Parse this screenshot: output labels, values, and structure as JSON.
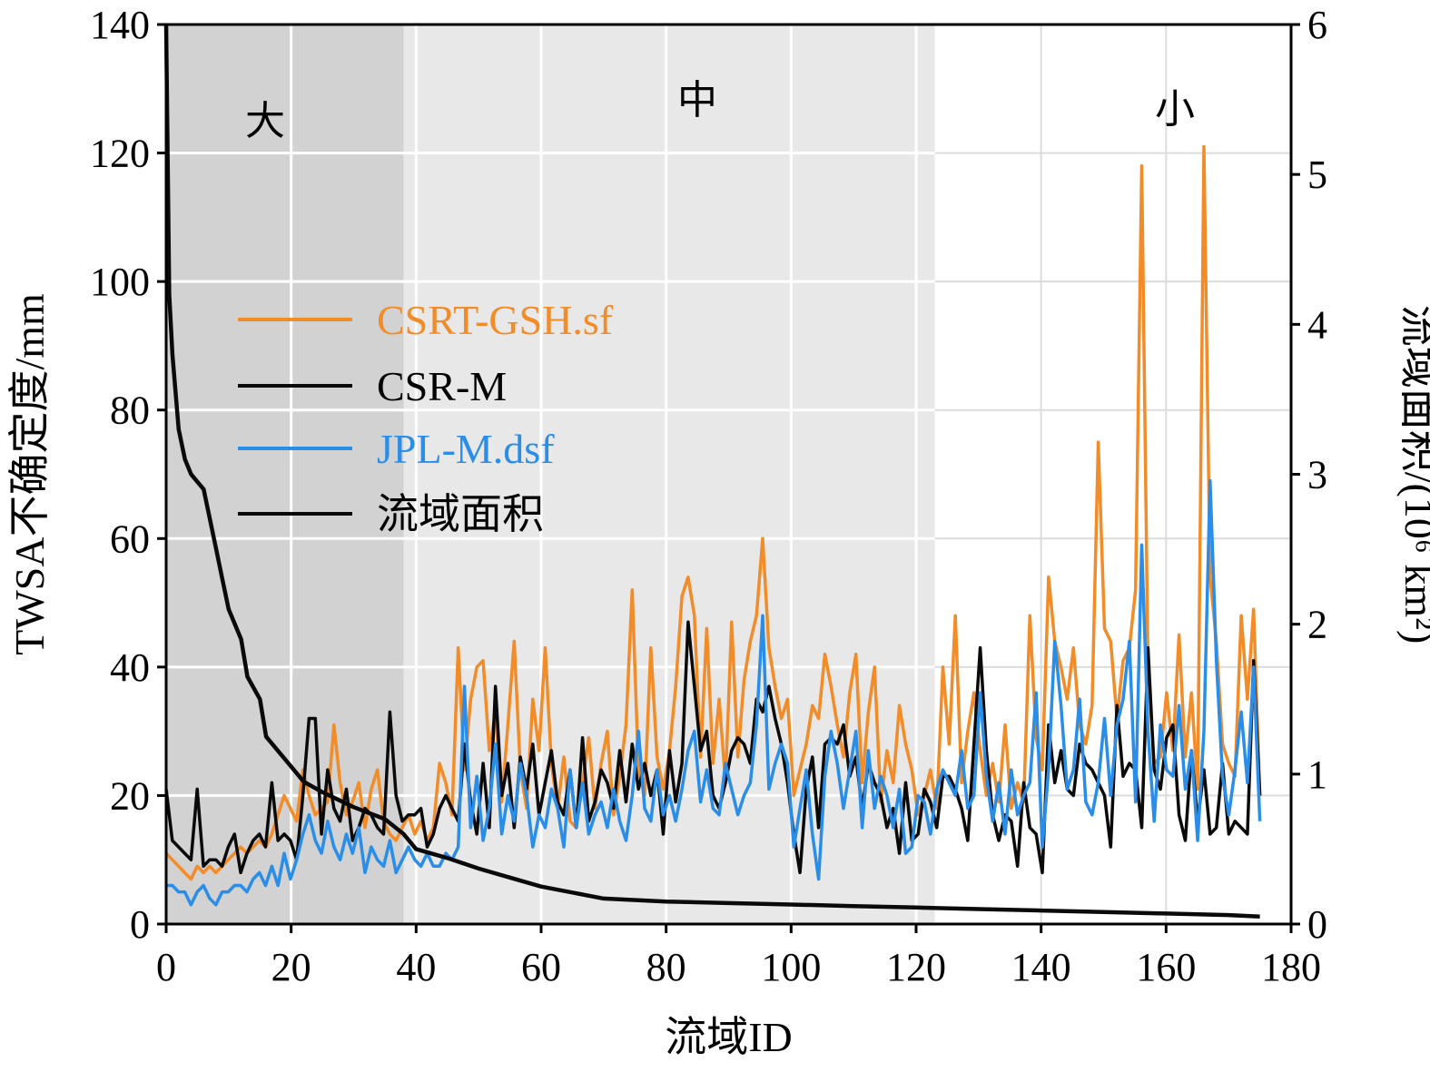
{
  "chart_data": {
    "type": "line",
    "xlabel": "流域ID",
    "ylabel": "TWSA不确定度/mm",
    "y2label": "流域面积/(10⁶ km²)",
    "xlim": [
      0,
      180
    ],
    "ylim": [
      0,
      140
    ],
    "y2lim": [
      0,
      6
    ],
    "x_ticks": [
      0,
      20,
      40,
      60,
      80,
      100,
      120,
      140,
      160,
      180
    ],
    "y_ticks": [
      0,
      20,
      40,
      60,
      80,
      100,
      120,
      140
    ],
    "y2_ticks": [
      0,
      1,
      2,
      3,
      4,
      5,
      6
    ],
    "grid": true,
    "legend_position": "upper-left",
    "regions": [
      {
        "label": "大",
        "x_start": 0,
        "x_end": 38,
        "color": "#d2d2d2"
      },
      {
        "label": "中",
        "x_start": 38,
        "x_end": 123,
        "color": "#e8e8e8"
      },
      {
        "label": "小",
        "x_start": 123,
        "x_end": 180,
        "color": "#ffffff"
      }
    ],
    "series": [
      {
        "name": "CSRT-GSH.sf",
        "color": "#f28c28",
        "axis": "left",
        "x_start": 0,
        "values": [
          11,
          10,
          9,
          8,
          7,
          9,
          8,
          9,
          8,
          9,
          10,
          11,
          12,
          11,
          12,
          13,
          12,
          14,
          17,
          20,
          18,
          16,
          24,
          20,
          17,
          18,
          19,
          31,
          22,
          17,
          19,
          22,
          15,
          21,
          24,
          16,
          14,
          13,
          15,
          17,
          14,
          16,
          13,
          15,
          25,
          22,
          17,
          43,
          24,
          35,
          40,
          41,
          27,
          33,
          19,
          31,
          44,
          24,
          18,
          35,
          27,
          43,
          25,
          18,
          26,
          16,
          15,
          22,
          29,
          18,
          25,
          30,
          17,
          23,
          31,
          52,
          24,
          20,
          43,
          26,
          21,
          27,
          37,
          51,
          54,
          48,
          26,
          46,
          25,
          35,
          22,
          47,
          26,
          38,
          44,
          48,
          60,
          43,
          37,
          32,
          35,
          20,
          24,
          28,
          34,
          32,
          42,
          37,
          31,
          26,
          36,
          42,
          22,
          33,
          40,
          19,
          27,
          22,
          34,
          28,
          24,
          17,
          20,
          24,
          18,
          40,
          28,
          48,
          22,
          30,
          36,
          27,
          20,
          25,
          19,
          31,
          18,
          22,
          19,
          48,
          29,
          24,
          54,
          44,
          40,
          35,
          43,
          31,
          28,
          34,
          75,
          46,
          44,
          32,
          41,
          43,
          52,
          118,
          40,
          25,
          26,
          36,
          27,
          45,
          26,
          36,
          21,
          121,
          54,
          44,
          28,
          25,
          23,
          48,
          35,
          49,
          20
        ],
        "x_end": 175
      },
      {
        "name": "CSR-M",
        "color": "#0a0a0a",
        "axis": "left",
        "x_start": 0,
        "values": [
          21,
          13,
          12,
          11,
          10,
          21,
          9,
          10,
          10,
          9,
          12,
          14,
          8,
          11,
          13,
          14,
          12,
          22,
          13,
          14,
          13,
          10,
          20,
          32,
          32,
          14,
          24,
          18,
          16,
          21,
          13,
          15,
          18,
          17,
          15,
          14,
          33,
          20,
          16,
          17,
          17,
          18,
          12,
          14,
          18,
          20,
          18,
          16,
          28,
          19,
          14,
          25,
          15,
          37,
          20,
          25,
          15,
          26,
          21,
          28,
          17,
          22,
          27,
          19,
          17,
          24,
          15,
          29,
          16,
          19,
          24,
          22,
          18,
          27,
          19,
          28,
          21,
          25,
          20,
          24,
          14,
          27,
          19,
          25,
          47,
          37,
          27,
          30,
          20,
          18,
          22,
          27,
          29,
          28,
          25,
          35,
          33,
          37,
          32,
          28,
          22,
          14,
          8,
          21,
          26,
          15,
          28,
          29,
          28,
          31,
          23,
          26,
          18,
          25,
          22,
          20,
          15,
          18,
          11,
          22,
          13,
          14,
          21,
          19,
          15,
          23,
          23,
          21,
          18,
          13,
          28,
          43,
          27,
          17,
          13,
          17,
          16,
          9,
          22,
          15,
          14,
          8,
          31,
          22,
          27,
          21,
          20,
          28,
          25,
          24,
          22,
          20,
          12,
          34,
          23,
          25,
          24,
          15,
          43,
          24,
          21,
          29,
          31,
          17,
          13,
          27,
          16,
          24,
          14,
          15,
          25,
          14,
          16,
          15,
          14,
          41,
          20
        ],
        "x_end": 175
      },
      {
        "name": "JPL-M.dsf",
        "color": "#2a8ee8",
        "axis": "left",
        "x_start": 0,
        "values": [
          6,
          6,
          5,
          5,
          3,
          5,
          6,
          4,
          3,
          5,
          5,
          6,
          6,
          5,
          7,
          8,
          6,
          9,
          6,
          11,
          7,
          10,
          14,
          17,
          13,
          11,
          16,
          12,
          10,
          14,
          11,
          15,
          8,
          12,
          10,
          9,
          13,
          8,
          10,
          12,
          10,
          9,
          11,
          9,
          9,
          11,
          10,
          12,
          37,
          15,
          23,
          13,
          18,
          28,
          14,
          20,
          16,
          25,
          20,
          12,
          17,
          15,
          21,
          18,
          12,
          24,
          15,
          22,
          14,
          17,
          19,
          15,
          21,
          16,
          13,
          20,
          30,
          18,
          16,
          24,
          17,
          20,
          16,
          21,
          27,
          30,
          19,
          24,
          18,
          17,
          25,
          21,
          17,
          20,
          22,
          31,
          48,
          21,
          25,
          28,
          25,
          12,
          18,
          24,
          14,
          7,
          23,
          30,
          25,
          18,
          24,
          30,
          15,
          27,
          18,
          23,
          20,
          15,
          21,
          11,
          12,
          20,
          19,
          14,
          21,
          24,
          22,
          20,
          27,
          18,
          20,
          36,
          23,
          16,
          22,
          14,
          24,
          17,
          20,
          22,
          36,
          12,
          24,
          44,
          34,
          21,
          24,
          35,
          19,
          17,
          22,
          32,
          20,
          31,
          35,
          44,
          19,
          59,
          30,
          16,
          31,
          24,
          23,
          34,
          21,
          27,
          13,
          30,
          69,
          41,
          23,
          17,
          24,
          33,
          22,
          40,
          16
        ],
        "x_end": 175
      },
      {
        "name": "流域面积",
        "color": "#0a0a0a",
        "axis": "right",
        "units": "10⁶ km²",
        "x": [
          0,
          0.5,
          1,
          2,
          3,
          4,
          5,
          6,
          7,
          8,
          9,
          10,
          12,
          13,
          15,
          16,
          18,
          20,
          22,
          25,
          30,
          35,
          38,
          40,
          45,
          50,
          55,
          60,
          70,
          80,
          90,
          100,
          110,
          120,
          130,
          140,
          150,
          160,
          170,
          175
        ],
        "values": [
          6.0,
          4.2,
          3.8,
          3.3,
          3.1,
          3.0,
          2.95,
          2.9,
          2.7,
          2.5,
          2.3,
          2.1,
          1.9,
          1.65,
          1.5,
          1.25,
          1.15,
          1.05,
          0.95,
          0.88,
          0.78,
          0.7,
          0.6,
          0.5,
          0.44,
          0.37,
          0.31,
          0.25,
          0.17,
          0.15,
          0.14,
          0.13,
          0.12,
          0.11,
          0.1,
          0.09,
          0.08,
          0.07,
          0.06,
          0.05
        ]
      }
    ]
  }
}
